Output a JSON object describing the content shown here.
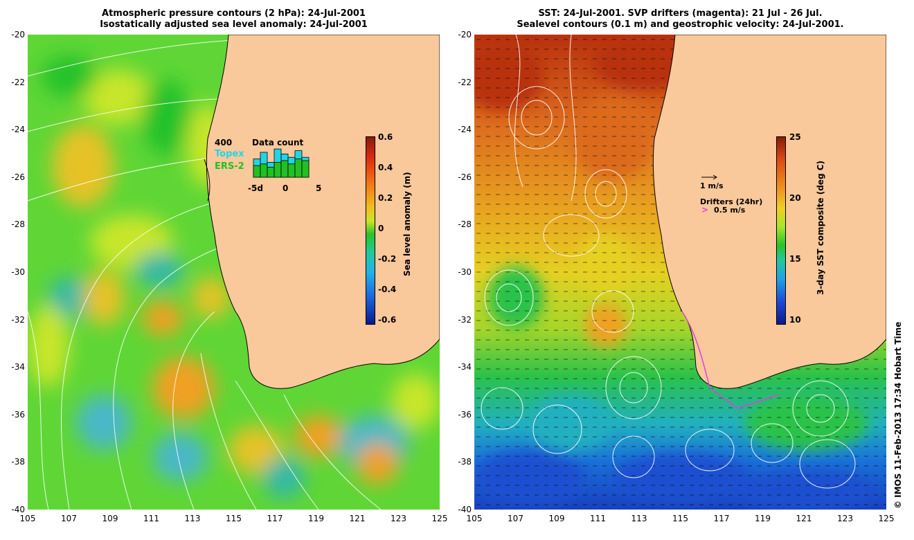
{
  "left_panel": {
    "title_line1": "Atmospheric pressure contours (2 hPa): 24-Jul-2001",
    "title_line2": "Isostatically adjusted sea level anomaly: 24-Jul-2001",
    "colorbar": {
      "title": "Sea level anomaly (m)",
      "ticks": [
        "0.6",
        "0.4",
        "0.2",
        "0",
        "-0.2",
        "-0.4",
        "-0.6"
      ]
    },
    "inset": {
      "title": "Data count",
      "ylabel": "400",
      "legend_topex": "Topex",
      "legend_ers2": "ERS-2",
      "xticks": [
        "-5d",
        "0",
        "5"
      ],
      "topex_color": "#22d4e6",
      "ers2_color": "#22c022"
    }
  },
  "right_panel": {
    "title_line1": "SST: 24-Jul-2001. SVP drifters (magenta): 21 Jul - 26 Jul.",
    "title_line2": "Sealevel contours (0.1 m) and geostrophic velocity: 24-Jul-2001.",
    "colorbar": {
      "title": "3-day SST composite (deg C)",
      "ticks": [
        "25",
        "20",
        "15",
        "10"
      ]
    },
    "velocity_scale": "1 m/s",
    "drifters_label": "Drifters (24hr)",
    "drifters_scale": "0.5 m/s",
    "drifter_color": "#e040e0"
  },
  "axes": {
    "yticks": [
      "-20",
      "-22",
      "-24",
      "-26",
      "-28",
      "-30",
      "-32",
      "-34",
      "-36",
      "-38",
      "-40"
    ],
    "xticks": [
      "105",
      "107",
      "109",
      "111",
      "113",
      "115",
      "117",
      "119",
      "121",
      "123",
      "125"
    ]
  },
  "colors": {
    "land": "#f9c89b",
    "ocean_green": "#55d42a",
    "ocean_yellow": "#d4ee22",
    "sst_red": "#c8441a",
    "sst_blue": "#1a4ad8"
  },
  "footer_stamp": "© IMOS 11-Feb-2013 17:34 Hobart Time"
}
